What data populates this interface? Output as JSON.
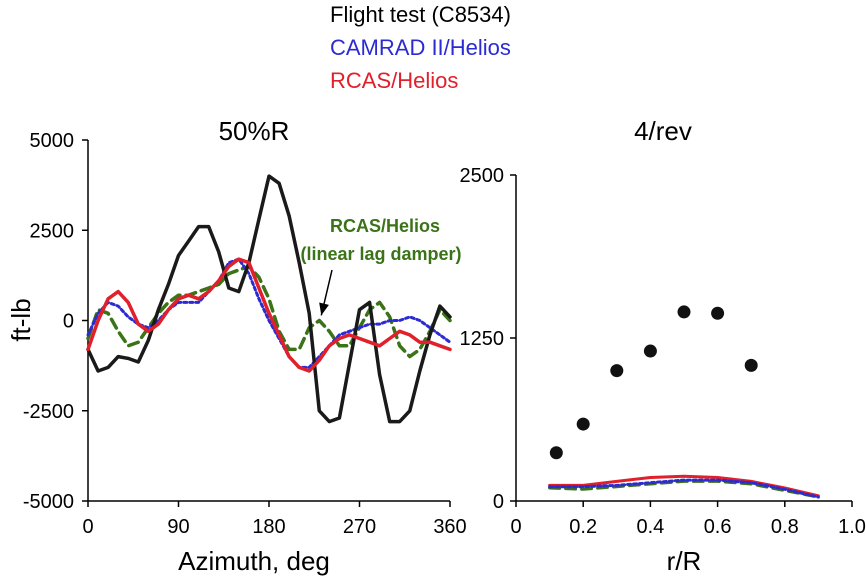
{
  "legend": [
    {
      "label": "Flight test (C8534)",
      "color": "#1a1a1a",
      "style": "solid"
    },
    {
      "label": "CAMRAD II/Helios",
      "color": "#2b2bd1",
      "style": "dotted"
    },
    {
      "label": "RCAS/Helios",
      "color": "#e0202a",
      "style": "solid"
    }
  ],
  "chart_data": [
    {
      "type": "line",
      "title": "50%R",
      "xlabel": "Azimuth, deg",
      "ylabel": "ft-lb",
      "xlim": [
        0,
        360
      ],
      "ylim": [
        -5000,
        5000
      ],
      "xticks": [
        0,
        90,
        180,
        270,
        360
      ],
      "xtick_labels": [
        "0",
        "90",
        "180",
        "270",
        "360"
      ],
      "yticks": [
        5000,
        2500,
        0,
        -2500,
        -5000
      ],
      "ytick_labels": [
        "5000",
        "2500",
        "0",
        "-2500",
        "-5000"
      ],
      "series": [
        {
          "name": "Flight test (C8534)",
          "color": "#1a1a1a",
          "dash": "",
          "x": [
            0,
            10,
            20,
            30,
            40,
            50,
            60,
            70,
            80,
            90,
            100,
            110,
            120,
            130,
            140,
            150,
            160,
            170,
            180,
            190,
            200,
            210,
            220,
            230,
            240,
            250,
            260,
            270,
            280,
            290,
            300,
            310,
            320,
            330,
            340,
            350,
            360
          ],
          "values": [
            -800,
            -1400,
            -1300,
            -1000,
            -1050,
            -1150,
            -550,
            300,
            1000,
            1800,
            2200,
            2600,
            2600,
            1900,
            900,
            800,
            1600,
            2800,
            4000,
            3800,
            2900,
            1600,
            200,
            -2500,
            -2800,
            -2700,
            -1200,
            300,
            500,
            -1500,
            -2800,
            -2800,
            -2500,
            -1400,
            -400,
            400,
            100
          ]
        },
        {
          "name": "CAMRAD II/Helios",
          "color": "#2b2bd1",
          "dash": "3 3",
          "x": [
            0,
            10,
            20,
            30,
            40,
            50,
            60,
            70,
            80,
            90,
            100,
            110,
            120,
            130,
            140,
            150,
            160,
            170,
            180,
            190,
            200,
            210,
            220,
            230,
            240,
            250,
            260,
            270,
            280,
            290,
            300,
            310,
            320,
            330,
            340,
            350,
            360
          ],
          "values": [
            -400,
            200,
            500,
            400,
            100,
            -100,
            -200,
            0,
            300,
            500,
            500,
            500,
            800,
            1100,
            1600,
            1700,
            1300,
            600,
            0,
            -500,
            -1000,
            -1300,
            -1300,
            -1000,
            -700,
            -400,
            -300,
            -200,
            -100,
            -100,
            0,
            0,
            100,
            0,
            -200,
            -400,
            -600
          ]
        },
        {
          "name": "RCAS/Helios",
          "color": "#e0202a",
          "dash": "",
          "x": [
            0,
            10,
            20,
            30,
            40,
            50,
            60,
            70,
            80,
            90,
            100,
            110,
            120,
            130,
            140,
            150,
            160,
            170,
            180,
            190,
            200,
            210,
            220,
            230,
            240,
            250,
            260,
            270,
            280,
            290,
            300,
            310,
            320,
            330,
            340,
            350,
            360
          ],
          "values": [
            -800,
            0,
            600,
            800,
            500,
            -100,
            -300,
            -100,
            300,
            600,
            700,
            600,
            800,
            1100,
            1500,
            1700,
            1600,
            900,
            200,
            -400,
            -1000,
            -1300,
            -1400,
            -1100,
            -700,
            -500,
            -400,
            -500,
            -600,
            -700,
            -500,
            -300,
            -400,
            -600,
            -600,
            -700,
            -800
          ]
        },
        {
          "name": "RCAS/Helios (linear lag damper)",
          "color": "#3a7318",
          "dash": "10 6",
          "x": [
            0,
            10,
            20,
            30,
            40,
            50,
            60,
            70,
            80,
            90,
            100,
            110,
            120,
            130,
            140,
            150,
            160,
            170,
            180,
            190,
            200,
            210,
            220,
            230,
            240,
            250,
            260,
            270,
            280,
            290,
            300,
            310,
            320,
            330,
            340,
            350,
            360
          ],
          "values": [
            -500,
            300,
            200,
            -300,
            -700,
            -600,
            -200,
            200,
            500,
            700,
            700,
            800,
            900,
            1000,
            1300,
            1400,
            1500,
            1200,
            600,
            -300,
            -800,
            -800,
            -200,
            0,
            -300,
            -700,
            -700,
            -200,
            300,
            500,
            100,
            -700,
            -1000,
            -800,
            -300,
            300,
            0
          ]
        }
      ],
      "annotation": {
        "lines": [
          "RCAS/Helios",
          "(linear lag damper)"
        ],
        "points_to_x": 232,
        "points_to_y": -80
      }
    },
    {
      "type": "scatter",
      "title": "4/rev",
      "xlabel": "r/R",
      "ylabel": "",
      "xlim": [
        0,
        1.0
      ],
      "ylim": [
        0,
        2500
      ],
      "xticks": [
        0,
        0.2,
        0.4,
        0.6,
        0.8,
        1.0
      ],
      "xtick_labels": [
        "0",
        "0.2",
        "0.4",
        "0.6",
        "0.8",
        "1.0"
      ],
      "yticks": [
        2500,
        1250,
        0
      ],
      "ytick_labels": [
        "2500",
        "1250",
        "0"
      ],
      "points": {
        "name": "Flight test (C8534)",
        "x": [
          0.12,
          0.2,
          0.3,
          0.4,
          0.5,
          0.6,
          0.7
        ],
        "values": [
          370,
          590,
          1000,
          1150,
          1450,
          1440,
          1040
        ]
      },
      "series": [
        {
          "name": "CAMRAD II/Helios",
          "color": "#2b2bd1",
          "dash": "3 3",
          "x": [
            0.1,
            0.2,
            0.3,
            0.4,
            0.5,
            0.6,
            0.7,
            0.8,
            0.9
          ],
          "values": [
            110,
            110,
            120,
            140,
            160,
            160,
            140,
            90,
            30
          ]
        },
        {
          "name": "RCAS/Helios",
          "color": "#e0202a",
          "dash": "",
          "x": [
            0.1,
            0.2,
            0.3,
            0.4,
            0.5,
            0.6,
            0.7,
            0.8,
            0.9
          ],
          "values": [
            120,
            120,
            150,
            180,
            190,
            180,
            150,
            100,
            40
          ]
        },
        {
          "name": "RCAS/Helios (linear lag damper)",
          "color": "#3a7318",
          "dash": "10 6",
          "x": [
            0.1,
            0.2,
            0.3,
            0.4,
            0.5,
            0.6,
            0.7,
            0.8,
            0.9
          ],
          "values": [
            100,
            90,
            110,
            130,
            150,
            150,
            130,
            80,
            30
          ]
        }
      ]
    }
  ]
}
